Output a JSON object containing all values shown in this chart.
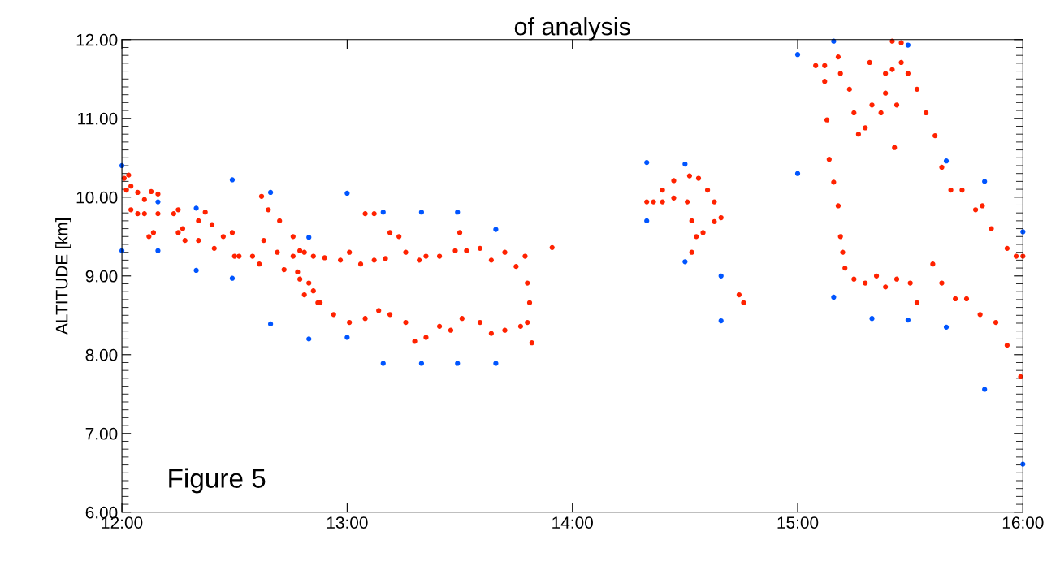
{
  "chart_data": {
    "type": "scatter",
    "title": "of analysis",
    "ylabel": "ALTITUDE [km]",
    "xlim": [
      12,
      16
    ],
    "xticks": [
      {
        "value": 12,
        "label": "12:00"
      },
      {
        "value": 13,
        "label": "13:00"
      },
      {
        "value": 14,
        "label": "14:00"
      },
      {
        "value": 15,
        "label": "15:00"
      },
      {
        "value": 16,
        "label": "16:00"
      }
    ],
    "ylim": [
      6,
      12
    ],
    "yticks": [
      {
        "value": 6,
        "label": "6.00"
      },
      {
        "value": 7,
        "label": "7.00"
      },
      {
        "value": 8,
        "label": "8.00"
      },
      {
        "value": 9,
        "label": "9.00"
      },
      {
        "value": 10,
        "label": "10.00"
      },
      {
        "value": 11,
        "label": "11.00"
      },
      {
        "value": 12,
        "label": "12.00"
      }
    ],
    "grid": false,
    "marker": "circle",
    "annotations": [
      "Figure 5"
    ],
    "series": [
      {
        "color": "#ff2200",
        "x": [
          12.01,
          12.03,
          12.04,
          12.07,
          12.13,
          12.16,
          12.16,
          12.14,
          12.12,
          12.02,
          12.04,
          12.07,
          12.1,
          12.1,
          12.23,
          12.25,
          12.28,
          12.27,
          12.25,
          12.34,
          12.34,
          12.37,
          12.4,
          12.45,
          12.49,
          12.52,
          12.58,
          12.63,
          12.69,
          12.76,
          12.79,
          12.85,
          12.9,
          12.97,
          13.01,
          13.06,
          13.12,
          13.17,
          13.08,
          13.12,
          13.19,
          13.23,
          13.26,
          13.32,
          13.35,
          13.41,
          13.48,
          13.5,
          13.53,
          13.59,
          13.64,
          13.7,
          13.75,
          13.79,
          13.8,
          13.81,
          13.8,
          13.91,
          12.41,
          12.5,
          12.61,
          12.72,
          12.79,
          12.85,
          12.88,
          12.94,
          13.01,
          13.08,
          13.14,
          13.19,
          13.26,
          13.3,
          13.35,
          13.41,
          13.46,
          13.51,
          13.59,
          13.64,
          13.7,
          13.77,
          13.82,
          12.62,
          12.65,
          12.7,
          12.76,
          12.81,
          12.78,
          12.83,
          12.87,
          12.81,
          14.33,
          14.36,
          14.4,
          14.45,
          14.52,
          14.56,
          14.6,
          14.63,
          14.66,
          14.63,
          14.58,
          14.55,
          14.53,
          14.53,
          14.51,
          14.45,
          14.4,
          14.74,
          14.76,
          15.08,
          15.12,
          15.13,
          15.14,
          15.16,
          15.18,
          15.19,
          15.2,
          15.21,
          15.25,
          15.3,
          15.35,
          15.39,
          15.44,
          15.5,
          15.53,
          15.6,
          15.64,
          15.7,
          15.75,
          15.81,
          15.88,
          15.93,
          15.99,
          15.12,
          15.19,
          15.23,
          15.25,
          15.27,
          15.3,
          15.33,
          15.37,
          15.39,
          15.42,
          15.46,
          15.49,
          15.53,
          15.57,
          15.61,
          15.64,
          15.68,
          15.73,
          15.79,
          15.82,
          15.86,
          15.93,
          15.97,
          16.0,
          15.42,
          15.46,
          15.43,
          15.32,
          15.18,
          15.39,
          15.44
        ],
        "values": [
          10.24,
          10.28,
          10.14,
          10.06,
          10.07,
          10.04,
          9.79,
          9.55,
          9.5,
          10.09,
          9.84,
          9.79,
          9.79,
          9.97,
          9.79,
          9.55,
          9.45,
          9.6,
          9.84,
          9.45,
          9.7,
          9.81,
          9.65,
          9.5,
          9.55,
          9.25,
          9.25,
          9.45,
          9.3,
          9.25,
          9.32,
          9.25,
          9.23,
          9.2,
          9.3,
          9.15,
          9.2,
          9.22,
          9.79,
          9.79,
          9.55,
          9.5,
          9.3,
          9.2,
          9.25,
          9.25,
          9.32,
          9.55,
          9.32,
          9.35,
          9.2,
          9.3,
          9.12,
          9.25,
          8.91,
          8.66,
          8.41,
          9.36,
          9.35,
          9.25,
          9.15,
          9.08,
          8.96,
          8.81,
          8.66,
          8.51,
          8.41,
          8.46,
          8.56,
          8.51,
          8.41,
          8.17,
          8.22,
          8.36,
          8.31,
          8.46,
          8.41,
          8.27,
          8.31,
          8.36,
          8.15,
          10.01,
          9.84,
          9.7,
          9.5,
          9.3,
          9.05,
          8.91,
          8.66,
          8.76,
          9.94,
          9.94,
          10.09,
          10.21,
          10.27,
          10.24,
          10.09,
          9.94,
          9.74,
          9.69,
          9.55,
          9.5,
          9.7,
          9.3,
          9.94,
          9.99,
          9.94,
          8.76,
          8.66,
          11.67,
          11.47,
          10.98,
          10.48,
          10.19,
          9.89,
          9.5,
          9.3,
          9.1,
          8.96,
          8.91,
          9.0,
          8.86,
          8.96,
          8.91,
          8.66,
          9.15,
          8.91,
          8.71,
          8.71,
          8.51,
          8.41,
          8.12,
          7.72,
          11.67,
          11.57,
          11.37,
          11.07,
          10.8,
          10.88,
          11.17,
          11.07,
          11.57,
          11.62,
          11.71,
          11.57,
          11.37,
          11.07,
          10.78,
          10.38,
          10.09,
          10.09,
          9.84,
          9.89,
          9.6,
          9.35,
          9.25,
          9.25,
          11.98,
          11.96,
          10.63,
          11.71,
          11.78,
          11.32,
          11.17
        ]
      },
      {
        "color": "#0055ff",
        "x": [
          12.0,
          12.0,
          12.16,
          12.16,
          12.33,
          12.33,
          12.49,
          12.49,
          12.66,
          12.66,
          12.83,
          12.83,
          13.0,
          13.0,
          13.16,
          13.16,
          13.33,
          13.33,
          13.49,
          13.49,
          13.66,
          13.66,
          14.33,
          14.33,
          14.5,
          14.5,
          14.66,
          14.66,
          15.0,
          15.0,
          15.16,
          15.16,
          15.33,
          15.49,
          15.49,
          15.66,
          15.66,
          15.83,
          15.83,
          16.0,
          16.0
        ],
        "values": [
          10.4,
          9.32,
          9.94,
          9.32,
          9.86,
          9.07,
          10.22,
          8.97,
          10.06,
          8.39,
          9.49,
          8.2,
          10.05,
          8.22,
          9.81,
          7.89,
          9.81,
          7.89,
          9.81,
          7.89,
          9.59,
          7.89,
          10.44,
          9.7,
          10.42,
          9.18,
          9.0,
          8.43,
          11.81,
          10.3,
          11.98,
          8.73,
          8.46,
          11.93,
          8.44,
          10.46,
          8.35,
          10.2,
          7.56,
          9.56,
          6.61
        ]
      }
    ]
  }
}
